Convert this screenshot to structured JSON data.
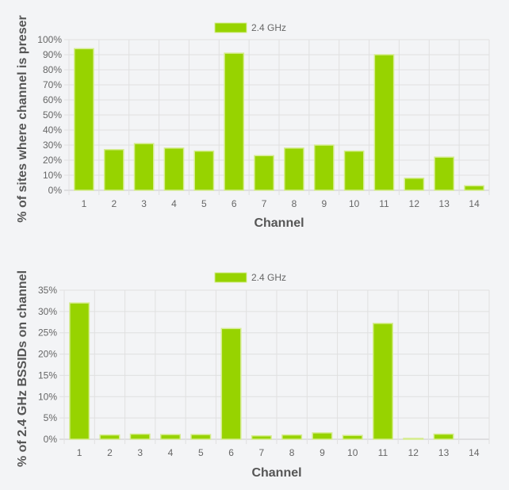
{
  "chart_data": [
    {
      "type": "bar",
      "categories": [
        "1",
        "2",
        "3",
        "4",
        "5",
        "6",
        "7",
        "8",
        "9",
        "10",
        "11",
        "12",
        "13",
        "14"
      ],
      "series": [
        {
          "name": "2.4 GHz",
          "values": [
            94,
            27,
            31,
            28,
            26,
            91,
            23,
            28,
            30,
            26,
            90,
            8,
            22,
            3
          ]
        }
      ],
      "title": "",
      "xlabel": "Channel",
      "ylabel": "% of sites where channel is preser",
      "ylim": [
        0,
        100
      ],
      "ytick_step": 10,
      "ytick_suffix": "%",
      "grid": true,
      "legend_position": "top",
      "colors": {
        "bar_fill": "#97d300",
        "bar_border": "#d5ec8e"
      }
    },
    {
      "type": "bar",
      "categories": [
        "1",
        "2",
        "3",
        "4",
        "5",
        "6",
        "7",
        "8",
        "9",
        "10",
        "11",
        "12",
        "13",
        "14"
      ],
      "series": [
        {
          "name": "2.4 GHz",
          "values": [
            32,
            1,
            1.2,
            1.1,
            1.1,
            26,
            0.8,
            1,
            1.5,
            0.9,
            27.2,
            0.2,
            1.2,
            0
          ]
        }
      ],
      "title": "",
      "xlabel": "Channel",
      "ylabel": "% of 2.4 GHz BSSIDs on channel",
      "ylim": [
        0,
        35
      ],
      "ytick_step": 5,
      "ytick_suffix": "%",
      "grid": true,
      "legend_position": "top",
      "colors": {
        "bar_fill": "#97d300",
        "bar_border": "#d5ec8e"
      }
    }
  ]
}
